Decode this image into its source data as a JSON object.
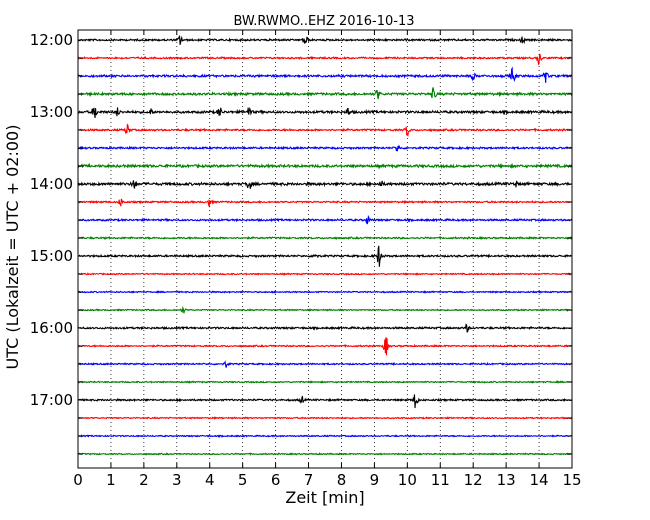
{
  "chart_data": {
    "type": "line",
    "title": "BW.RWMO..EHZ 2016-10-13",
    "xlabel": "Zeit  [min]",
    "ylabel": "UTC (Lokalzeit = UTC + 02:00)",
    "xlim": [
      0,
      15
    ],
    "x_ticks": [
      "0",
      "1",
      "2",
      "3",
      "4",
      "5",
      "6",
      "7",
      "8",
      "9",
      "10",
      "11",
      "12",
      "13",
      "14",
      "15"
    ],
    "y_ticks": [
      "12:00",
      "13:00",
      "14:00",
      "15:00",
      "16:00",
      "17:00"
    ],
    "grid": "vertical dotted",
    "colors": [
      "#000000",
      "#ff0000",
      "#0000ff",
      "#008000"
    ],
    "series": [
      {
        "start": "12:00",
        "color": "#000000",
        "amp": 1.0,
        "events": [
          [
            3.1,
            5
          ],
          [
            6.9,
            7
          ],
          [
            13.5,
            3
          ]
        ]
      },
      {
        "start": "12:15",
        "color": "#ff0000",
        "amp": 0.9,
        "events": [
          [
            14.0,
            6
          ]
        ]
      },
      {
        "start": "12:30",
        "color": "#0000ff",
        "amp": 1.2,
        "events": [
          [
            12.0,
            3
          ],
          [
            13.2,
            8
          ],
          [
            14.2,
            6
          ]
        ]
      },
      {
        "start": "12:45",
        "color": "#008000",
        "amp": 1.3,
        "events": [
          [
            9.1,
            5
          ],
          [
            10.8,
            6
          ]
        ]
      },
      {
        "start": "13:00",
        "color": "#000000",
        "amp": 1.3,
        "events": [
          [
            0.5,
            8
          ],
          [
            1.2,
            4
          ],
          [
            2.2,
            4
          ],
          [
            4.3,
            5
          ],
          [
            5.2,
            5
          ],
          [
            8.2,
            4
          ]
        ]
      },
      {
        "start": "13:15",
        "color": "#ff0000",
        "amp": 1.0,
        "events": [
          [
            1.5,
            6
          ],
          [
            10.0,
            6
          ]
        ]
      },
      {
        "start": "13:30",
        "color": "#0000ff",
        "amp": 1.0,
        "events": [
          [
            9.7,
            4
          ]
        ]
      },
      {
        "start": "13:45",
        "color": "#008000",
        "amp": 1.4,
        "events": []
      },
      {
        "start": "14:00",
        "color": "#000000",
        "amp": 1.4,
        "events": [
          [
            1.7,
            6
          ],
          [
            5.2,
            6
          ],
          [
            9.2,
            3
          ],
          [
            13.3,
            3
          ]
        ]
      },
      {
        "start": "14:15",
        "color": "#ff0000",
        "amp": 0.9,
        "events": [
          [
            1.3,
            4
          ],
          [
            4.0,
            4
          ]
        ]
      },
      {
        "start": "14:30",
        "color": "#0000ff",
        "amp": 1.0,
        "events": [
          [
            8.8,
            4
          ]
        ]
      },
      {
        "start": "14:45",
        "color": "#008000",
        "amp": 0.9,
        "events": []
      },
      {
        "start": "15:00",
        "color": "#000000",
        "amp": 1.0,
        "events": [
          [
            9.15,
            12
          ],
          [
            7.2,
            3
          ]
        ]
      },
      {
        "start": "15:15",
        "color": "#ff0000",
        "amp": 0.7,
        "events": []
      },
      {
        "start": "15:30",
        "color": "#0000ff",
        "amp": 0.7,
        "events": []
      },
      {
        "start": "15:45",
        "color": "#008000",
        "amp": 0.7,
        "events": [
          [
            3.2,
            3
          ]
        ]
      },
      {
        "start": "16:00",
        "color": "#000000",
        "amp": 1.0,
        "events": [
          [
            11.8,
            4
          ]
        ]
      },
      {
        "start": "16:15",
        "color": "#ff0000",
        "amp": 0.8,
        "events": [
          [
            9.35,
            10
          ]
        ]
      },
      {
        "start": "16:30",
        "color": "#0000ff",
        "amp": 0.8,
        "events": [
          [
            4.5,
            3
          ]
        ]
      },
      {
        "start": "16:45",
        "color": "#008000",
        "amp": 0.7,
        "events": []
      },
      {
        "start": "17:00",
        "color": "#000000",
        "amp": 0.9,
        "events": [
          [
            10.25,
            9
          ],
          [
            6.8,
            3
          ]
        ]
      },
      {
        "start": "17:15",
        "color": "#ff0000",
        "amp": 0.7,
        "events": []
      },
      {
        "start": "17:30",
        "color": "#0000ff",
        "amp": 0.7,
        "events": []
      },
      {
        "start": "17:45",
        "color": "#008000",
        "amp": 0.7,
        "events": []
      }
    ]
  }
}
